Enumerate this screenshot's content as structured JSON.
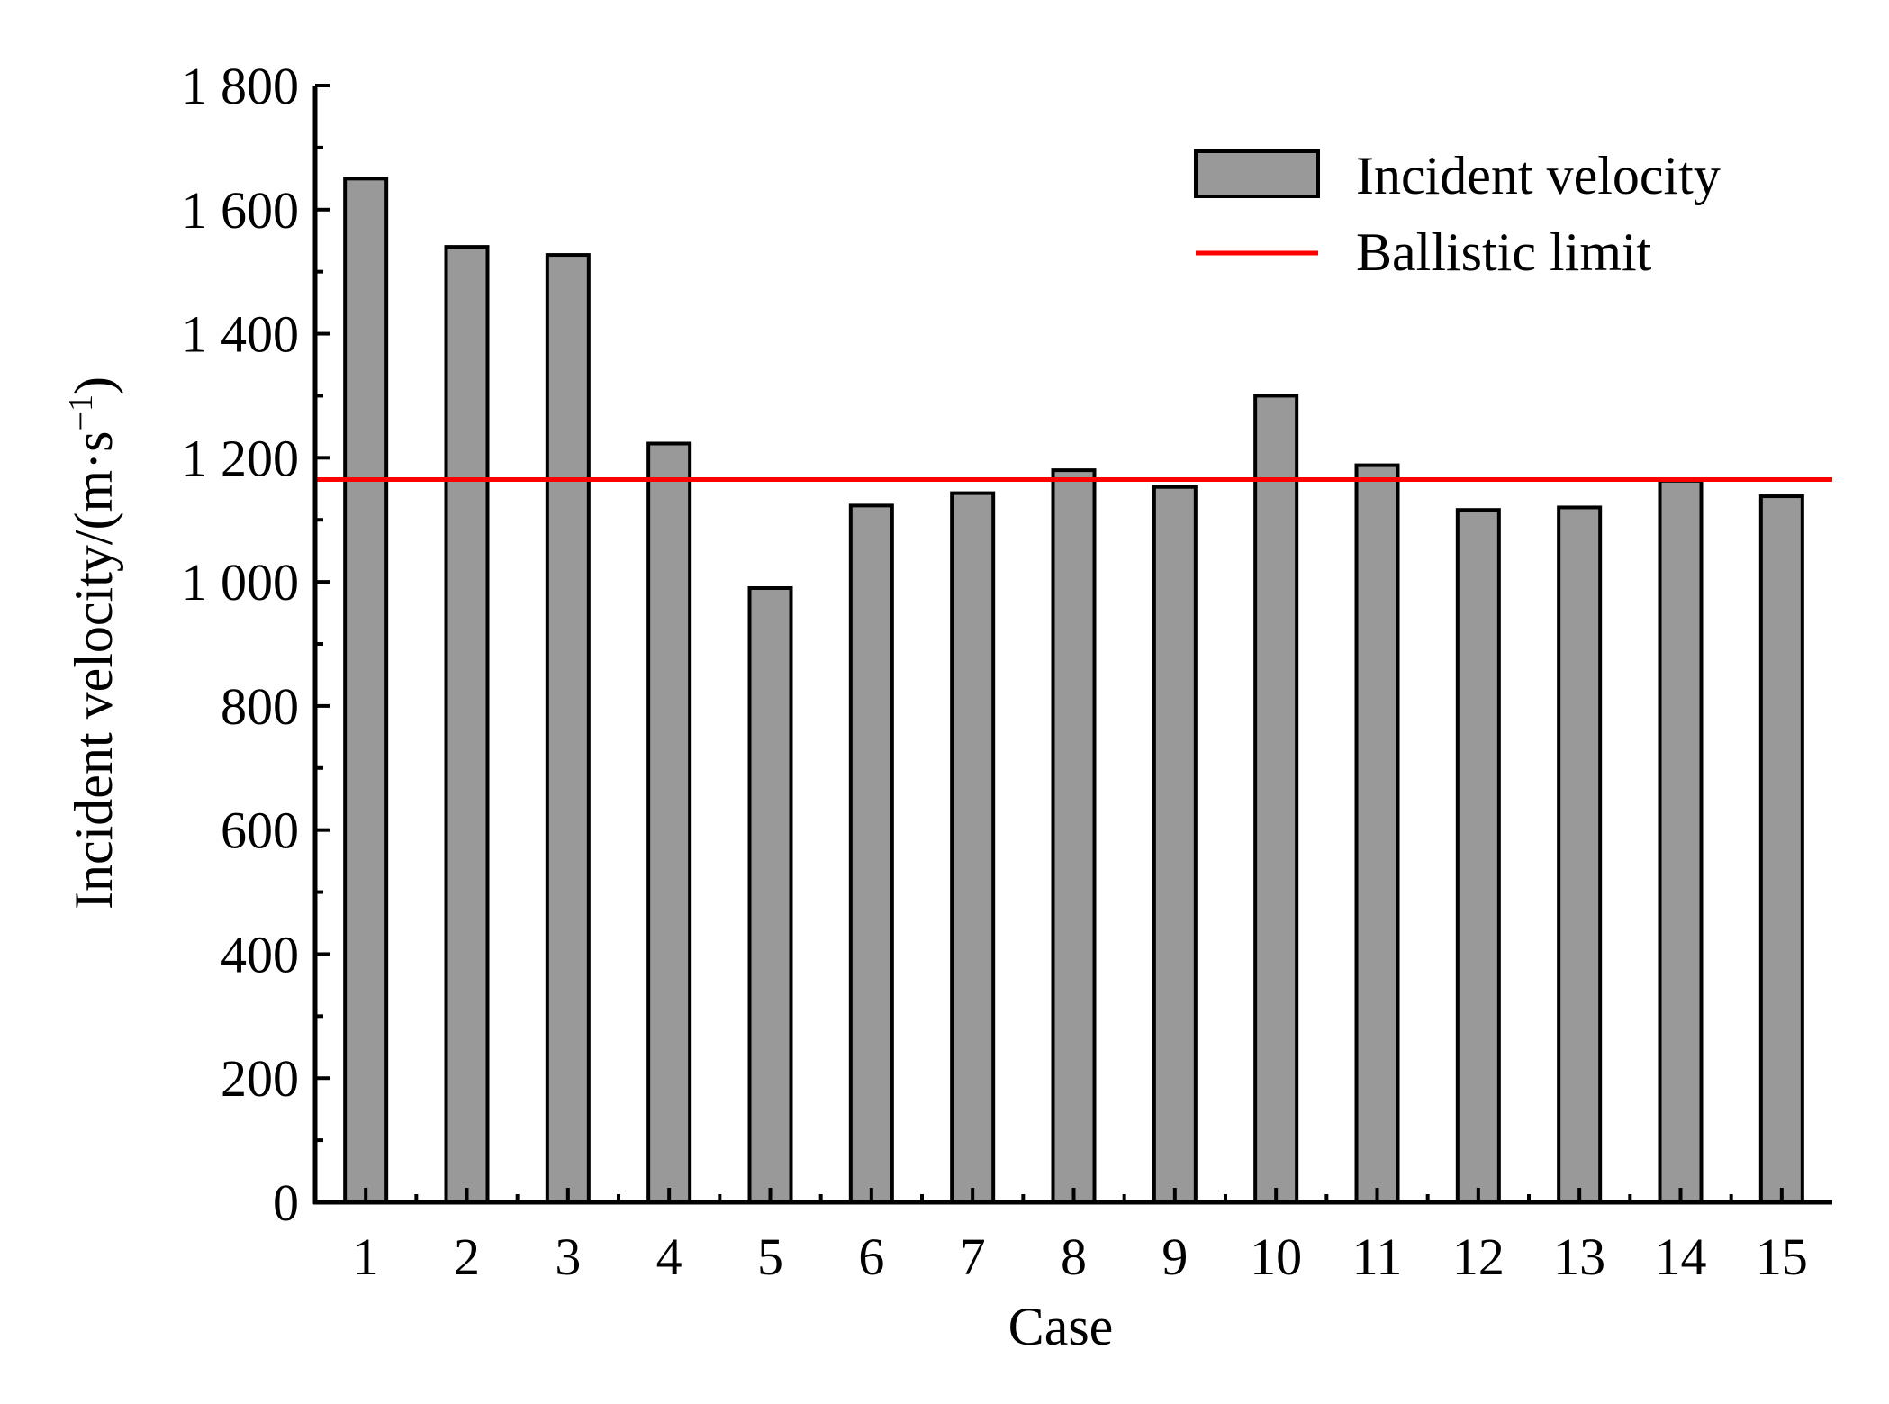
{
  "chart_data": {
    "type": "bar",
    "title": "",
    "xlabel": "Case",
    "ylabel": "Incident velocity/(m·s",
    "ylabel_sup": "−1",
    "ylabel_close": ")",
    "categories": [
      "1",
      "2",
      "3",
      "4",
      "5",
      "6",
      "7",
      "8",
      "9",
      "10",
      "11",
      "12",
      "13",
      "14",
      "15"
    ],
    "series": [
      {
        "name": "Incident velocity",
        "type": "bar",
        "color": "#999999",
        "values": [
          1650,
          1540,
          1527,
          1223,
          990,
          1123,
          1143,
          1180,
          1153,
          1300,
          1188,
          1116,
          1120,
          1163,
          1138
        ]
      },
      {
        "name": "Ballistic limit",
        "type": "hline",
        "color": "#ff0000",
        "value": 1165
      }
    ],
    "ylim": [
      0,
      1800
    ],
    "yticks": [
      0,
      200,
      400,
      600,
      800,
      1000,
      1200,
      1400,
      1600,
      1800
    ],
    "ytick_labels": [
      "0",
      "200",
      "400",
      "600",
      "800",
      "1 000",
      "1 200",
      "1 400",
      "1 600",
      "1 800"
    ],
    "grid": false,
    "legend_position": "top-right"
  }
}
